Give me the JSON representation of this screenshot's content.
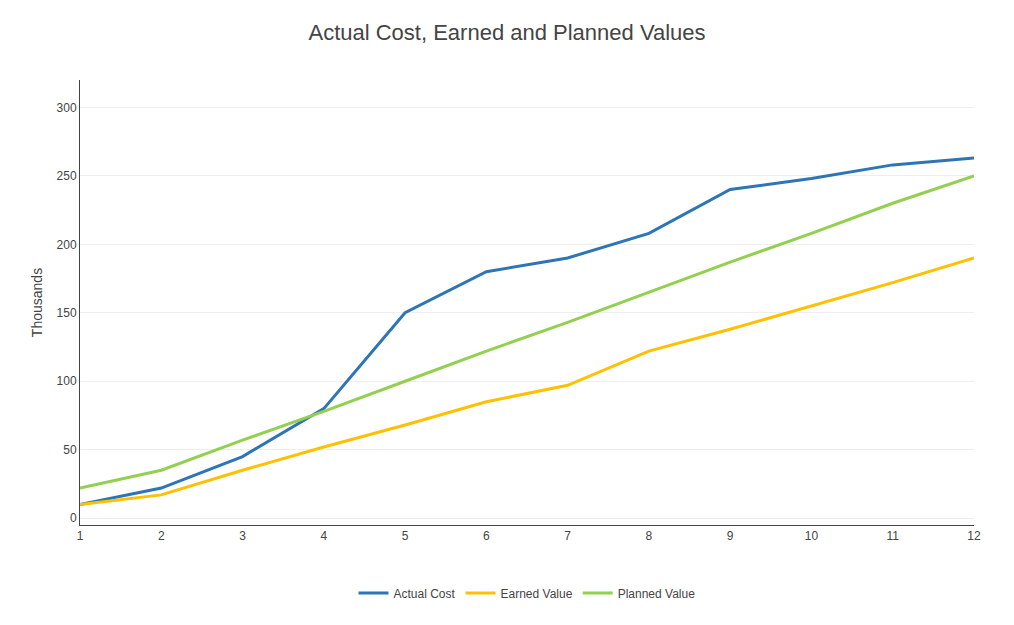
{
  "chart_data": {
    "type": "line",
    "title": "Actual Cost, Earned and Planned Values",
    "ylabel": "Thousands",
    "x": [
      1,
      2,
      3,
      4,
      5,
      6,
      7,
      8,
      9,
      10,
      11,
      12
    ],
    "series": [
      {
        "name": "Actual Cost",
        "color": "#2E75B6",
        "values": [
          10,
          22,
          45,
          80,
          150,
          180,
          190,
          208,
          240,
          248,
          258,
          263
        ]
      },
      {
        "name": "Earned Value",
        "color": "#FFC000",
        "values": [
          10,
          17,
          35,
          52,
          68,
          85,
          97,
          122,
          138,
          155,
          172,
          190
        ]
      },
      {
        "name": "Planned Value",
        "color": "#92D050",
        "values": [
          22,
          35,
          57,
          78,
          100,
          122,
          143,
          165,
          187,
          208,
          230,
          250
        ]
      }
    ],
    "xlim": [
      1,
      12
    ],
    "xticks": [
      1,
      2,
      3,
      4,
      5,
      6,
      7,
      8,
      9,
      10,
      11,
      12
    ],
    "ylim": [
      -5,
      320
    ],
    "yticks": [
      0,
      50,
      100,
      150,
      200,
      250,
      300
    ],
    "grid": true,
    "legend": "bottom"
  }
}
